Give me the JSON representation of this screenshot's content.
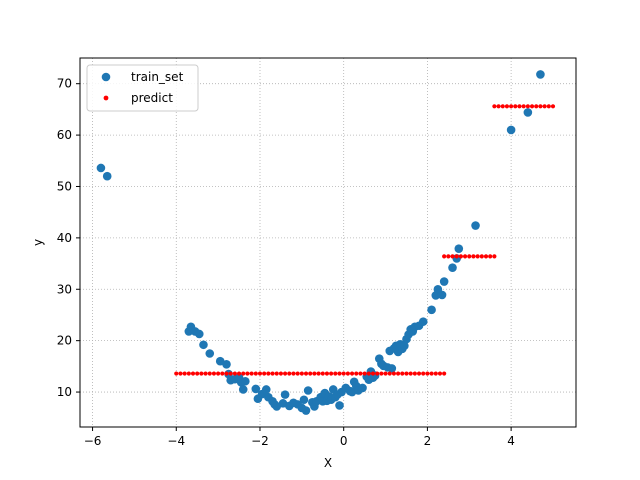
{
  "chart_data": {
    "type": "scatter",
    "xlabel": "X",
    "ylabel": "y",
    "xlim": [
      -6.3,
      5.55
    ],
    "ylim": [
      3.2,
      75
    ],
    "xticks": [
      -6,
      -4,
      -2,
      0,
      2,
      4
    ],
    "yticks": [
      10,
      20,
      30,
      40,
      50,
      60,
      70
    ],
    "grid": true,
    "grid_style": "dotted",
    "legend_position": "upper-left",
    "series": [
      {
        "name": "train_set",
        "color": "#1f77b4",
        "marker": "circle",
        "points": [
          [
            -5.8,
            53.6
          ],
          [
            -5.65,
            52.0
          ],
          [
            -3.7,
            21.8
          ],
          [
            -3.65,
            22.7
          ],
          [
            -3.55,
            21.8
          ],
          [
            -3.45,
            21.3
          ],
          [
            -3.35,
            19.2
          ],
          [
            -3.2,
            17.5
          ],
          [
            -2.95,
            16.0
          ],
          [
            -2.8,
            15.4
          ],
          [
            -2.75,
            13.5
          ],
          [
            -2.7,
            12.3
          ],
          [
            -2.6,
            12.5
          ],
          [
            -2.5,
            12.8
          ],
          [
            -2.45,
            11.9
          ],
          [
            -2.35,
            12.1
          ],
          [
            -2.4,
            10.5
          ],
          [
            -2.1,
            10.6
          ],
          [
            -2.05,
            8.7
          ],
          [
            -1.95,
            9.6
          ],
          [
            -1.85,
            10.5
          ],
          [
            -1.8,
            9.0
          ],
          [
            -1.7,
            8.2
          ],
          [
            -1.65,
            7.6
          ],
          [
            -1.6,
            7.2
          ],
          [
            -1.45,
            7.8
          ],
          [
            -1.4,
            9.5
          ],
          [
            -1.3,
            7.3
          ],
          [
            -1.2,
            7.9
          ],
          [
            -1.1,
            7.6
          ],
          [
            -1.0,
            6.9
          ],
          [
            -0.95,
            8.5
          ],
          [
            -0.9,
            6.4
          ],
          [
            -0.85,
            10.3
          ],
          [
            -0.75,
            8.0
          ],
          [
            -0.7,
            7.2
          ],
          [
            -0.65,
            8.2
          ],
          [
            -0.55,
            9.0
          ],
          [
            -0.5,
            8.2
          ],
          [
            -0.45,
            9.8
          ],
          [
            -0.4,
            8.3
          ],
          [
            -0.35,
            9.1
          ],
          [
            -0.3,
            8.5
          ],
          [
            -0.25,
            10.5
          ],
          [
            -0.2,
            9.0
          ],
          [
            -0.15,
            9.5
          ],
          [
            -0.1,
            7.4
          ],
          [
            -0.05,
            10.0
          ],
          [
            0.05,
            10.8
          ],
          [
            0.15,
            10.2
          ],
          [
            0.2,
            10.0
          ],
          [
            0.25,
            12.0
          ],
          [
            0.3,
            11.2
          ],
          [
            0.35,
            10.3
          ],
          [
            0.45,
            10.8
          ],
          [
            0.55,
            13.0
          ],
          [
            0.6,
            12.4
          ],
          [
            0.65,
            14.0
          ],
          [
            0.7,
            12.8
          ],
          [
            0.75,
            13.2
          ],
          [
            0.85,
            16.5
          ],
          [
            0.9,
            15.5
          ],
          [
            0.95,
            15.1
          ],
          [
            1.05,
            14.8
          ],
          [
            1.1,
            18.0
          ],
          [
            1.15,
            14.6
          ],
          [
            1.2,
            18.5
          ],
          [
            1.25,
            19.0
          ],
          [
            1.3,
            17.8
          ],
          [
            1.35,
            19.3
          ],
          [
            1.4,
            18.4
          ],
          [
            1.45,
            19.0
          ],
          [
            1.5,
            20.3
          ],
          [
            1.55,
            21.2
          ],
          [
            1.6,
            22.2
          ],
          [
            1.65,
            21.8
          ],
          [
            1.7,
            22.7
          ],
          [
            1.8,
            22.9
          ],
          [
            1.9,
            23.7
          ],
          [
            2.1,
            26.0
          ],
          [
            2.2,
            28.8
          ],
          [
            2.25,
            30.0
          ],
          [
            2.35,
            28.9
          ],
          [
            2.4,
            31.5
          ],
          [
            2.6,
            34.2
          ],
          [
            2.7,
            36.0
          ],
          [
            2.75,
            37.9
          ],
          [
            3.15,
            42.4
          ],
          [
            4.0,
            61.0
          ],
          [
            4.4,
            64.4
          ],
          [
            4.7,
            71.8
          ]
        ]
      },
      {
        "name": "predict",
        "color": "#ff0000",
        "marker": "dot",
        "segments": [
          {
            "x_start": -4.0,
            "x_end": 2.4,
            "step": 0.1,
            "y": 13.6
          },
          {
            "x_start": 2.4,
            "x_end": 3.6,
            "step": 0.1,
            "y": 36.4
          },
          {
            "x_start": 3.6,
            "x_end": 5.0,
            "step": 0.1,
            "y": 65.6
          }
        ]
      }
    ]
  }
}
